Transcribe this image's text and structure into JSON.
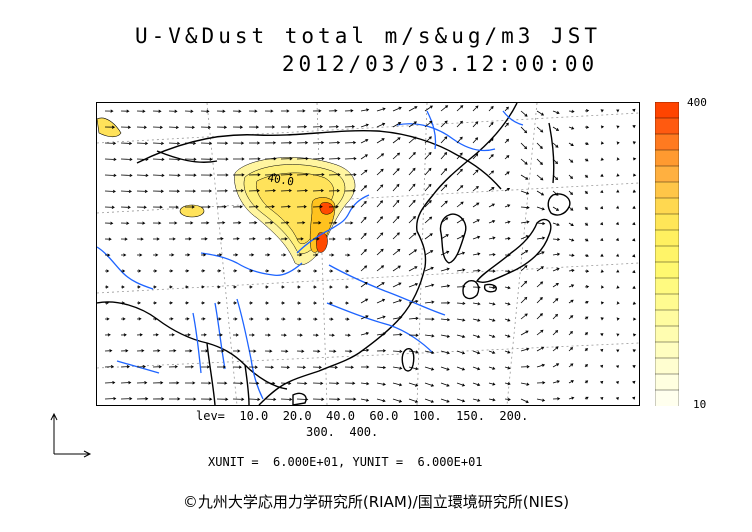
{
  "title": {
    "line1": "U-V&Dust total m/s&ug/m3 JST",
    "line2": "2012/03/03.12:00:00"
  },
  "colorbar": {
    "max_label": "400",
    "min_label": "10",
    "colors": [
      "#ff4400",
      "#ff5a10",
      "#ff7a20",
      "#ff9a30",
      "#ffb040",
      "#ffc648",
      "#ffd850",
      "#ffe658",
      "#fff060",
      "#fff468",
      "#fff870",
      "#fffa80",
      "#fffb90",
      "#fffca0",
      "#fffdb0",
      "#fffec0",
      "#fffed0",
      "#ffffe0",
      "#ffffee"
    ]
  },
  "map": {
    "contour_label": "40.0",
    "colors": {
      "coast": "#000000",
      "rivers": "#1e64ff",
      "dust_low": "#fff5a0",
      "dust_mid": "#ffe25a",
      "dust_high": "#ffc21e",
      "dust_peak": "#ff4a00"
    }
  },
  "legend": {
    "lev_line1": "lev=  10.0  20.0  40.0  60.0  100.  150.  200.",
    "lev_line2": "300.  400.",
    "units": "XUNIT =  6.000E+01, YUNIT =  6.000E+01"
  },
  "footer": {
    "copyright": "©九州大学応用力学研究所(RIAM)/国立環境研究所(NIES)"
  }
}
